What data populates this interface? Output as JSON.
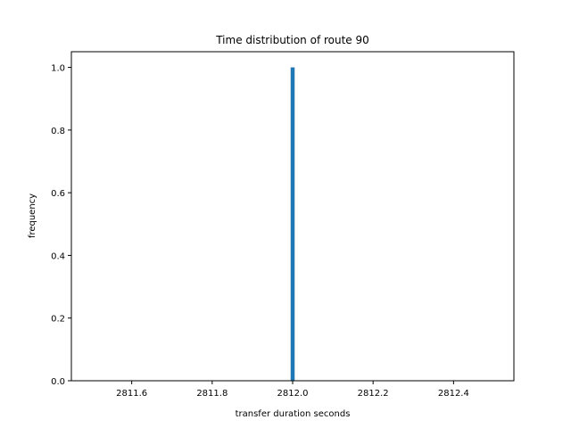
{
  "chart_data": {
    "type": "bar",
    "title": "Time distribution of route 90",
    "xlabel": "transfer duration seconds",
    "ylabel": "frequency",
    "xlim": [
      2811.45,
      2812.55
    ],
    "ylim": [
      0.0,
      1.05
    ],
    "xticks": [
      2811.6,
      2811.8,
      2812.0,
      2812.2,
      2812.4
    ],
    "xtick_labels": [
      "2811.6",
      "2811.8",
      "2812.0",
      "2812.2",
      "2812.4"
    ],
    "yticks": [
      0.0,
      0.2,
      0.4,
      0.6,
      0.8,
      1.0
    ],
    "ytick_labels": [
      "0.0",
      "0.2",
      "0.4",
      "0.6",
      "0.8",
      "1.0"
    ],
    "bars": [
      {
        "x_start": 2811.995,
        "x_end": 2812.005,
        "value": 1.0
      }
    ],
    "bar_color": "#1f77b4",
    "grid": false,
    "legend": "none"
  }
}
